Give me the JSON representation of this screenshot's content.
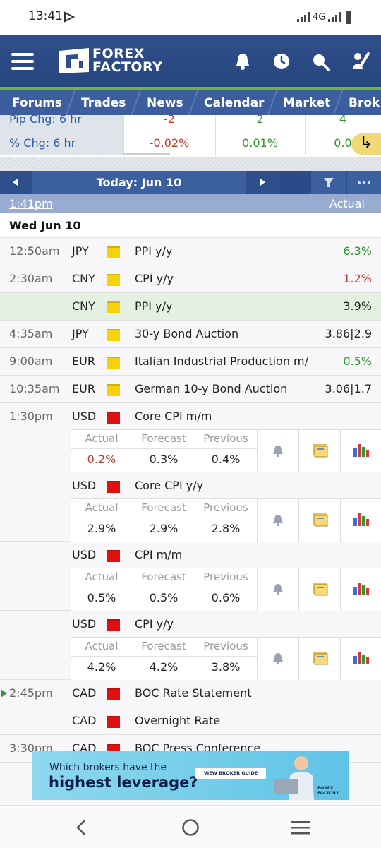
{
  "status_bar": {
    "time": "13:41",
    "network": "4G"
  },
  "header": {
    "logo_line1": "FOREX",
    "logo_line2": "FACTORY"
  },
  "nav": [
    "Forums",
    "Trades",
    "News",
    "Calendar",
    "Market",
    "Brok"
  ],
  "market_strip": {
    "rows": [
      {
        "label": "Pip Chg: 6 hr",
        "values": [
          "-2",
          "2",
          "4"
        ],
        "colors": [
          "#c0392b",
          "#2e9a2e",
          "#2e9a2e"
        ]
      },
      {
        "label": "% Chg: 6 hr",
        "values": [
          "-0.02%",
          "0.01%",
          "0.0"
        ],
        "colors": [
          "#c0392b",
          "#2e9a2e",
          "#2e9a2e"
        ]
      }
    ]
  },
  "calendar": {
    "date_nav": "Today: Jun 10",
    "current_time": "1:41pm",
    "column_actual": "Actual",
    "day": "Wed Jun 10",
    "detail_headers": [
      "Actual",
      "Forecast",
      "Previous"
    ],
    "events": [
      {
        "time": "12:50am",
        "currency": "JPY",
        "impact": "#f5d20a",
        "name": "PPI y/y",
        "actual": "6.3%",
        "actual_color": "#2e9a2e"
      },
      {
        "time": "2:30am",
        "currency": "CNY",
        "impact": "#f5d20a",
        "name": "CPI y/y",
        "actual": "1.2%",
        "actual_color": "#c0392b"
      },
      {
        "currency": "CNY",
        "impact": "#f5d20a",
        "name": "PPI y/y",
        "actual": "3.9%",
        "actual_color": "#222222",
        "highlight": true
      },
      {
        "time": "4:35am",
        "currency": "JPY",
        "impact": "#f5d20a",
        "name": "30-y Bond Auction",
        "actual": "3.86|2.9",
        "actual_color": "#222222"
      },
      {
        "time": "9:00am",
        "currency": "EUR",
        "impact": "#f5d20a",
        "name": "Italian Industrial Production m/m",
        "actual": "0.5%",
        "actual_color": "#2e9a2e"
      },
      {
        "time": "10:35am",
        "currency": "EUR",
        "impact": "#f5d20a",
        "name": "German 10-y Bond Auction",
        "actual": "3.06|1.7",
        "actual_color": "#222222"
      },
      {
        "time": "1:30pm",
        "currency": "USD",
        "impact": "#e01010",
        "name": "Core CPI m/m",
        "actual": "0.2%",
        "actual_color": "#c0392b",
        "forecast": "0.3%",
        "previous": "0.4%"
      },
      {
        "currency": "USD",
        "impact": "#e01010",
        "name": "Core CPI y/y",
        "actual": "2.9%",
        "actual_color": "#222222",
        "forecast": "2.9%",
        "previous": "2.8%"
      },
      {
        "currency": "USD",
        "impact": "#e01010",
        "name": "CPI m/m",
        "actual": "0.5%",
        "actual_color": "#222222",
        "forecast": "0.5%",
        "previous": "0.6%"
      },
      {
        "currency": "USD",
        "impact": "#e01010",
        "name": "CPI y/y",
        "actual": "4.2%",
        "actual_color": "#222222",
        "forecast": "4.2%",
        "previous": "3.8%"
      },
      {
        "time": "2:45pm",
        "currency": "CAD",
        "impact": "#e01010",
        "name": "BOC Rate Statement",
        "upnext": true
      },
      {
        "currency": "CAD",
        "impact": "#e01010",
        "name": "Overnight Rate"
      },
      {
        "time": "3:30pm",
        "currency": "CAD",
        "impact": "#e01010",
        "name": "BOC Press Conference"
      }
    ]
  },
  "ad": {
    "line1": "Which brokers have the",
    "line2": "highest leverage?",
    "button": "VIEW BROKER GUIDE",
    "brand": "FOREX FACTORY"
  }
}
